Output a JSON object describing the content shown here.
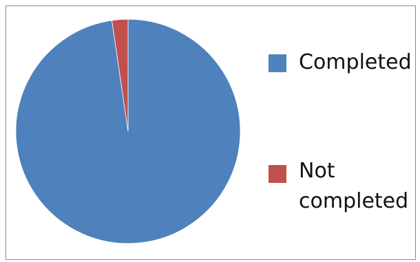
{
  "chart_data": {
    "type": "pie",
    "categories": [
      "Completed",
      "Not completed"
    ],
    "values": [
      97.7,
      2.3
    ],
    "colors": [
      "#4f81bd",
      "#c0504d"
    ],
    "title": "",
    "legend": "right"
  },
  "legend": {
    "items": [
      {
        "label": "Completed",
        "color": "#4f81bd"
      },
      {
        "label": "Not completed",
        "color": "#c0504d"
      }
    ]
  }
}
